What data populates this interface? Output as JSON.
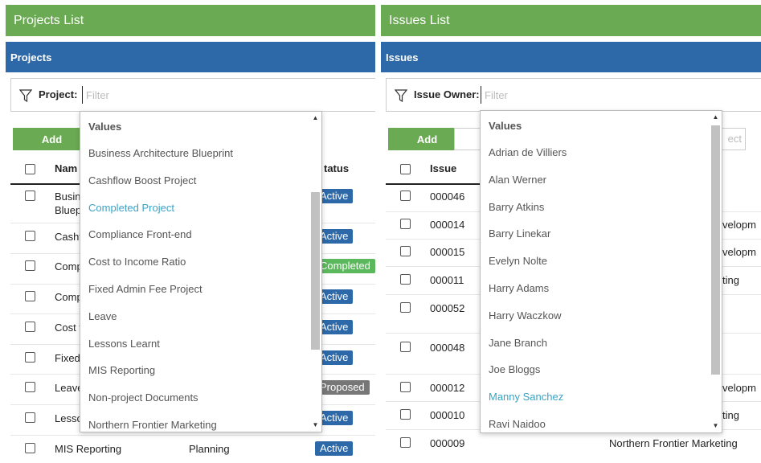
{
  "projects_panel": {
    "title": "Projects List",
    "subtitle": "Projects",
    "filter_label": "Project:",
    "filter_placeholder": "Filter",
    "add_label": "Add",
    "columns": {
      "name": "Name",
      "status": "Status"
    },
    "header_name_visible": "Nam",
    "header_status_visible": "tatus",
    "rows": [
      {
        "name": "Busin",
        "name2": "Bluep",
        "status": "Active",
        "status_color": "#2d68a8"
      },
      {
        "name": "Cashf",
        "status": "Active",
        "status_color": "#2d68a8"
      },
      {
        "name": "Comp",
        "status": "Completed",
        "status_color": "#5cb85c"
      },
      {
        "name": "Comp",
        "status": "Active",
        "status_color": "#2d68a8"
      },
      {
        "name": "Cost t",
        "status": "Active",
        "status_color": "#2d68a8"
      },
      {
        "name": "Fixed",
        "status": "Active",
        "status_color": "#2d68a8"
      },
      {
        "name": "Leave",
        "status": "Proposed",
        "status_color": "#777777"
      },
      {
        "name": "Lesso",
        "status": "Active",
        "status_color": "#2d68a8"
      },
      {
        "name": "MIS Reporting",
        "stage": "Planning",
        "status": "Active",
        "status_color": "#2d68a8"
      }
    ],
    "dropdown": {
      "header": "Values",
      "items": [
        "Business Architecture Blueprint",
        "Cashflow Boost Project",
        "Completed Project",
        "Compliance Front-end",
        "Cost to Income Ratio",
        "Fixed Admin Fee Project",
        "Leave",
        "Lessons Learnt",
        "MIS Reporting",
        "Non-project Documents",
        "Northern Frontier Marketing"
      ],
      "selected": "Completed Project"
    }
  },
  "issues_panel": {
    "title": "Issues List",
    "subtitle": "Issues",
    "filter_label": "Issue Owner:",
    "filter_placeholder": "Filter",
    "add_label": "Add",
    "ghost_button_visible": "ect",
    "columns": {
      "issue": "Issue"
    },
    "rows": [
      {
        "issue": "000046",
        "project": ""
      },
      {
        "issue": "000014",
        "project": "velopm"
      },
      {
        "issue": "000015",
        "project": "velopm"
      },
      {
        "issue": "000011",
        "project": "ting"
      },
      {
        "issue": "000052",
        "project": ""
      },
      {
        "issue": "000048",
        "project": ""
      },
      {
        "issue": "000012",
        "project": "velopm"
      },
      {
        "issue": "000010",
        "project": "ting"
      },
      {
        "issue": "000009",
        "project": "Northern Frontier Marketing"
      }
    ],
    "dropdown": {
      "header": "Values",
      "items": [
        "Adrian de Villiers",
        "Alan Werner",
        "Barry Atkins",
        "Barry Linekar",
        "Evelyn Nolte",
        "Harry Adams",
        "Harry Waczkow",
        "Jane Branch",
        "Joe Bloggs",
        "Manny Sanchez",
        "Ravi Naidoo"
      ],
      "selected": "Manny Sanchez"
    }
  },
  "colors": {
    "green": "#6aaa52",
    "blue": "#2d68a8",
    "selected_text": "#3aa3c6"
  }
}
